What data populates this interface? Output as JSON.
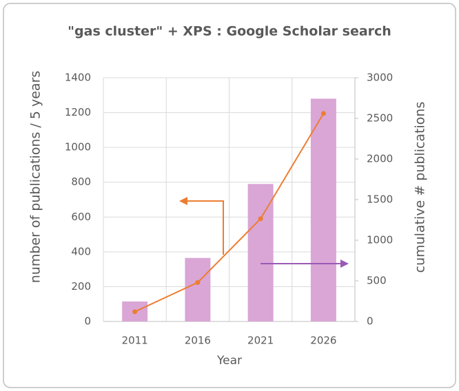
{
  "chart_data": {
    "type": "bar",
    "title": "\"gas cluster\" + XPS : Google Scholar search",
    "xlabel": "Year",
    "ylabel": "number of publications / 5 years",
    "y2label": "cumulative # publications",
    "categories": [
      "2011",
      "2016",
      "2021",
      "2026"
    ],
    "series": [
      {
        "type": "bar",
        "color": "#d9a6d6",
        "values": [
          115,
          365,
          790,
          1280
        ]
      },
      {
        "type": "line",
        "axis": "y2",
        "color": "#ed7d31",
        "values": [
          120,
          480,
          1265,
          2560
        ]
      }
    ],
    "ylim": [
      0,
      1400
    ],
    "yticks": [
      0,
      200,
      400,
      600,
      800,
      1000,
      1200,
      1400
    ],
    "y2lim": [
      0,
      3000
    ],
    "y2ticks": [
      0,
      500,
      1000,
      1500,
      2000,
      2500,
      3000
    ],
    "grid": true
  }
}
